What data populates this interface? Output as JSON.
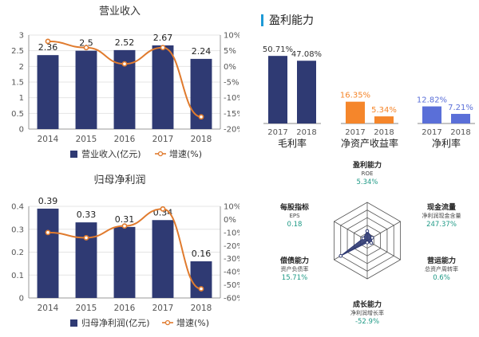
{
  "right_panel": {
    "title": "盈利能力",
    "accent_color": "#1e9ad6"
  },
  "chart_data": [
    {
      "id": "revenue",
      "type": "bar+line",
      "title": "营业收入",
      "categories": [
        "2014",
        "2015",
        "2016",
        "2017",
        "2018"
      ],
      "series": [
        {
          "name": "营业收入(亿元)",
          "axis": "left",
          "values": [
            2.36,
            2.5,
            2.52,
            2.67,
            2.24
          ],
          "labels": [
            "2.36",
            "2.5",
            "2.52",
            "2.67",
            "2.24"
          ]
        },
        {
          "name": "增速(%)",
          "axis": "right",
          "values": [
            8.0,
            6.0,
            0.8,
            6.0,
            -16.1
          ]
        }
      ],
      "ylim_left": [
        0,
        3
      ],
      "yticks_left": [
        "0",
        "0.5",
        "1",
        "1.5",
        "2",
        "2.5",
        "3"
      ],
      "ylim_right": [
        -20,
        10
      ],
      "yticks_right": [
        "-20%",
        "-15%",
        "-10%",
        "-5%",
        "0%",
        "5%",
        "10%"
      ],
      "colors": {
        "bar": "#2f3a73",
        "line": "#e07b2e"
      }
    },
    {
      "id": "net_profit",
      "type": "bar+line",
      "title": "归母净利润",
      "categories": [
        "2014",
        "2015",
        "2016",
        "2017",
        "2018"
      ],
      "series": [
        {
          "name": "归母净利润(亿元)",
          "axis": "left",
          "values": [
            0.39,
            0.33,
            0.31,
            0.34,
            0.16
          ],
          "labels": [
            "0.39",
            "0.33",
            "0.31",
            "0.34",
            "0.16"
          ]
        },
        {
          "name": "增速(%)",
          "axis": "right",
          "values": [
            -10.0,
            -14.0,
            -5.0,
            8.0,
            -53.0
          ]
        }
      ],
      "ylim_left": [
        0,
        0.4
      ],
      "yticks_left": [
        "0",
        "0.1",
        "0.2",
        "0.3",
        "0.4"
      ],
      "ylim_right": [
        -60,
        10
      ],
      "yticks_right": [
        "-60%",
        "-50%",
        "-40%",
        "-30%",
        "-20%",
        "-10%",
        "0%",
        "10%"
      ],
      "colors": {
        "bar": "#2f3a73",
        "line": "#e07b2e"
      }
    },
    {
      "id": "profitability",
      "type": "bar",
      "groups": [
        {
          "name": "毛利率",
          "categories": [
            "2017",
            "2018"
          ],
          "values": [
            50.71,
            47.08
          ],
          "labels": [
            "50.71%",
            "47.08%"
          ],
          "color": "#2f3a73",
          "label_color": "#333333"
        },
        {
          "name": "净资产收益率",
          "categories": [
            "2017",
            "2018"
          ],
          "values": [
            16.35,
            5.34
          ],
          "labels": [
            "16.35%",
            "5.34%"
          ],
          "color": "#f5862b",
          "label_color": "#f5862b"
        },
        {
          "name": "净利率",
          "categories": [
            "2017",
            "2018"
          ],
          "values": [
            12.82,
            7.21
          ],
          "labels": [
            "12.82%",
            "7.21%"
          ],
          "color": "#5a6fd8",
          "label_color": "#5a6fd8"
        }
      ]
    },
    {
      "id": "radar",
      "type": "radar",
      "axes": [
        {
          "title": "盈利能力",
          "sub": "ROE",
          "value": "5.34%",
          "score": 0.25
        },
        {
          "title": "现金流量",
          "sub": "净利润现金含量",
          "value": "247.37%",
          "score": 0.15
        },
        {
          "title": "营运能力",
          "sub": "总资产周转率",
          "value": "0.6%",
          "score": 0.12
        },
        {
          "title": "成长能力",
          "sub": "净利润增长率",
          "value": "-52.9%",
          "score": 0.05
        },
        {
          "title": "偿债能力",
          "sub": "资产负债率",
          "value": "15.71%",
          "score": 0.8
        },
        {
          "title": "每股指标",
          "sub": "EPS",
          "value": "0.18",
          "score": 0.12
        }
      ],
      "colors": {
        "fill": "#2f3a73",
        "grid": "#555555"
      }
    }
  ]
}
